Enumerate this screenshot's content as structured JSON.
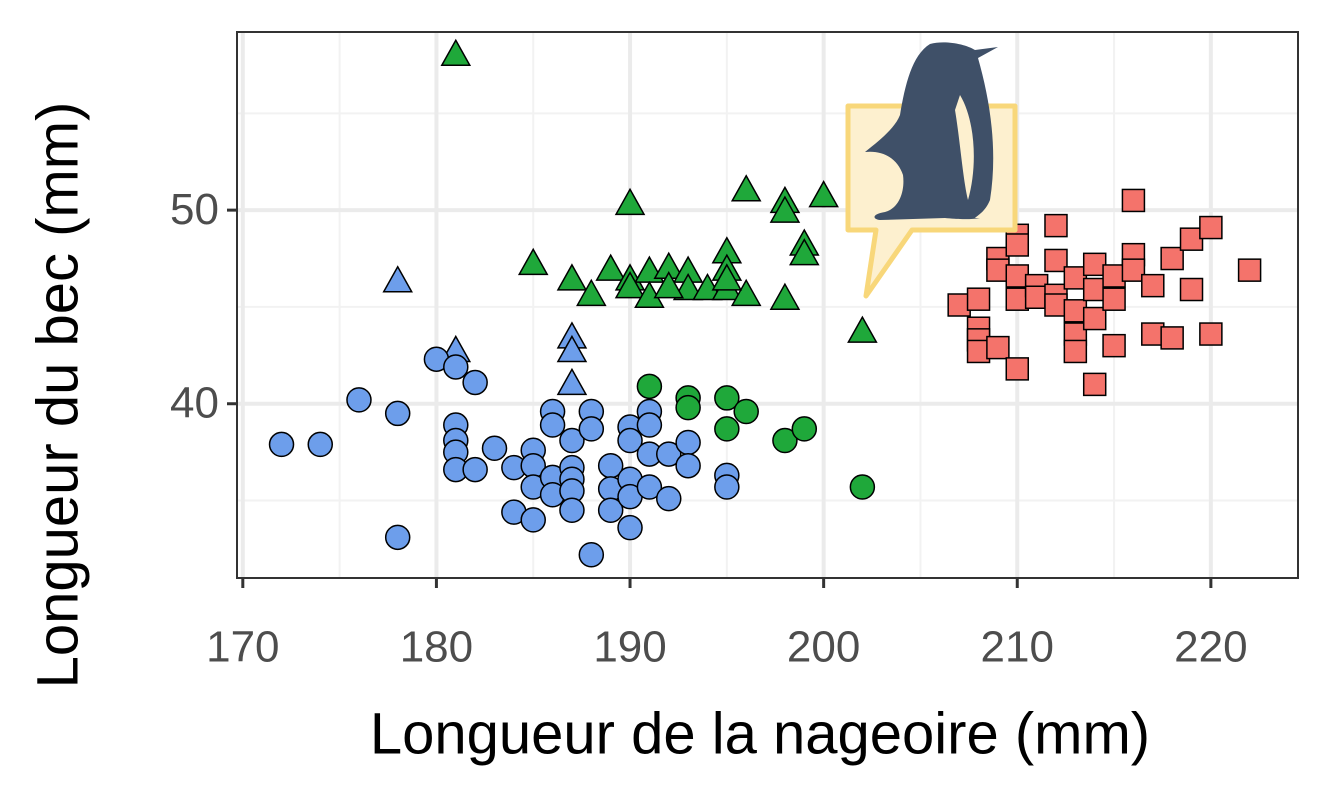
{
  "chart_data": {
    "type": "scatter",
    "x_label": "Longueur de la nageoire (mm)",
    "y_label": "Longueur du bec (mm)",
    "xlim": [
      169.7,
      224.5
    ],
    "ylim": [
      31.0,
      59.2
    ],
    "xticks": [
      170,
      180,
      190,
      200,
      210,
      220
    ],
    "yticks": [
      40,
      50
    ],
    "minor_xticks": [
      175,
      185,
      195,
      205,
      215
    ],
    "minor_yticks": [
      35,
      45,
      55
    ],
    "grid": true,
    "series": [
      {
        "color": "#1fa83a",
        "marker": "triangle",
        "x": [
          181,
          190,
          196,
          198,
          200,
          198,
          199,
          199,
          185,
          187,
          189,
          190,
          191,
          192,
          193,
          195,
          195,
          188,
          190,
          191,
          193,
          194,
          195,
          196,
          198,
          202,
          192,
          195
        ],
        "values": [
          58.0,
          50.3,
          51.0,
          50.4,
          50.7,
          49.9,
          48.2,
          47.7,
          47.2,
          46.4,
          46.9,
          46.4,
          46.8,
          47.0,
          46.8,
          47.8,
          46.9,
          45.6,
          46.0,
          45.5,
          45.9,
          45.9,
          45.9,
          45.6,
          45.4,
          43.7,
          46.0,
          46.4
        ]
      },
      {
        "color": "#1fa83a",
        "marker": "circle",
        "x": [
          191,
          193,
          193,
          195,
          196,
          195,
          198,
          199,
          202
        ],
        "values": [
          40.9,
          40.3,
          39.8,
          40.3,
          39.6,
          38.7,
          38.1,
          38.7,
          35.7
        ]
      },
      {
        "color": "#6d9eeb",
        "marker": "triangle",
        "x": [
          178,
          181,
          187,
          187,
          187
        ],
        "values": [
          46.3,
          42.7,
          43.4,
          42.7,
          41.0
        ]
      },
      {
        "color": "#6d9eeb",
        "marker": "circle",
        "x": [
          172,
          174,
          176,
          178,
          178,
          180,
          181,
          182,
          181,
          181,
          181,
          181,
          182,
          183,
          184,
          184,
          185,
          185,
          185,
          185,
          186,
          186,
          186,
          186,
          187,
          187,
          187,
          187,
          187,
          188,
          188,
          188,
          189,
          189,
          189,
          190,
          190,
          190,
          190,
          190,
          191,
          191,
          191,
          191,
          192,
          192,
          193,
          193,
          195,
          195
        ],
        "values": [
          37.9,
          37.9,
          40.2,
          39.5,
          33.1,
          42.3,
          41.9,
          41.1,
          38.9,
          38.1,
          37.5,
          36.6,
          36.6,
          37.7,
          36.7,
          34.4,
          37.6,
          36.8,
          35.7,
          34.0,
          39.6,
          38.9,
          36.2,
          35.3,
          38.1,
          36.7,
          36.1,
          35.5,
          34.5,
          39.6,
          38.7,
          32.2,
          36.8,
          35.6,
          34.5,
          38.8,
          38.1,
          36.1,
          35.2,
          33.6,
          39.6,
          38.9,
          37.4,
          35.7,
          37.4,
          35.1,
          38.0,
          36.8,
          36.3,
          35.7
        ]
      },
      {
        "color": "#f4736b",
        "marker": "square",
        "x": [
          207,
          208,
          208,
          208,
          208,
          209,
          209,
          209,
          210,
          210,
          210,
          210,
          210,
          211,
          211,
          212,
          212,
          212,
          212,
          213,
          213,
          213,
          213,
          214,
          214,
          214,
          214,
          215,
          215,
          215,
          216,
          216,
          216,
          217,
          217,
          218,
          218,
          219,
          219,
          220,
          220,
          222
        ],
        "values": [
          45.1,
          45.4,
          43.9,
          43.3,
          42.7,
          47.5,
          46.9,
          42.9,
          48.7,
          48.2,
          46.6,
          45.4,
          41.8,
          46.1,
          45.5,
          49.2,
          47.4,
          45.6,
          45.1,
          46.5,
          44.8,
          43.6,
          42.7,
          47.2,
          45.9,
          44.4,
          41.0,
          46.6,
          45.4,
          43.0,
          50.5,
          47.7,
          46.9,
          46.1,
          43.6,
          47.5,
          43.4,
          48.5,
          45.9,
          49.1,
          43.6,
          46.9
        ]
      }
    ]
  }
}
